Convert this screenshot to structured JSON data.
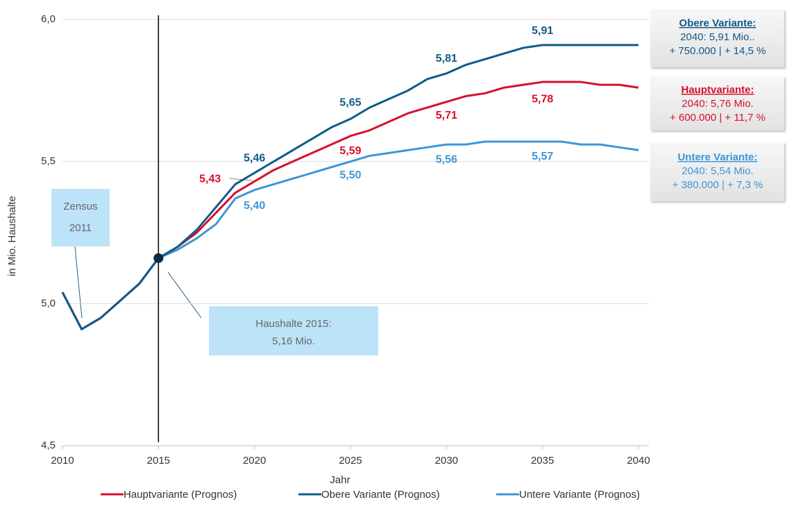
{
  "chart_data": {
    "type": "line",
    "x": [
      2010,
      2011,
      2012,
      2013,
      2014,
      2015,
      2016,
      2017,
      2018,
      2019,
      2020,
      2021,
      2022,
      2023,
      2024,
      2025,
      2026,
      2027,
      2028,
      2029,
      2030,
      2031,
      2032,
      2033,
      2034,
      2035,
      2036,
      2037,
      2038,
      2039,
      2040
    ],
    "series": [
      {
        "name": "Hauptvariante (Prognos)",
        "color": "#d7102b",
        "values": [
          5.04,
          4.91,
          4.95,
          5.01,
          5.07,
          5.16,
          5.2,
          5.25,
          5.32,
          5.39,
          5.43,
          5.47,
          5.5,
          5.53,
          5.56,
          5.59,
          5.61,
          5.64,
          5.67,
          5.69,
          5.71,
          5.73,
          5.74,
          5.76,
          5.77,
          5.78,
          5.78,
          5.78,
          5.77,
          5.77,
          5.76
        ],
        "value_labels": [
          null,
          null,
          null,
          null,
          null,
          null,
          null,
          null,
          null,
          null,
          "5,43",
          null,
          null,
          null,
          null,
          "5,59",
          null,
          null,
          null,
          null,
          "5,71",
          null,
          null,
          null,
          null,
          "5,78",
          null,
          null,
          null,
          null,
          null
        ]
      },
      {
        "name": "Obere Variante (Prognos)",
        "color": "#105a8a",
        "values": [
          5.04,
          4.91,
          4.95,
          5.01,
          5.07,
          5.16,
          5.2,
          5.26,
          5.34,
          5.42,
          5.46,
          5.5,
          5.54,
          5.58,
          5.62,
          5.65,
          5.69,
          5.72,
          5.75,
          5.79,
          5.81,
          5.84,
          5.86,
          5.88,
          5.9,
          5.91,
          5.91,
          5.91,
          5.91,
          5.91,
          5.91
        ],
        "value_labels": [
          null,
          null,
          null,
          null,
          null,
          null,
          null,
          null,
          null,
          null,
          "5,46",
          null,
          null,
          null,
          null,
          "5,65",
          null,
          null,
          null,
          null,
          "5,81",
          null,
          null,
          null,
          null,
          "5,91",
          null,
          null,
          null,
          null,
          null
        ]
      },
      {
        "name": "Untere Variante (Prognos)",
        "color": "#3d96d6",
        "values": [
          5.04,
          4.91,
          4.95,
          5.01,
          5.07,
          5.16,
          5.19,
          5.23,
          5.28,
          5.37,
          5.4,
          5.42,
          5.44,
          5.46,
          5.48,
          5.5,
          5.52,
          5.53,
          5.54,
          5.55,
          5.56,
          5.56,
          5.57,
          5.57,
          5.57,
          5.57,
          5.57,
          5.56,
          5.56,
          5.55,
          5.54
        ],
        "value_labels": [
          null,
          null,
          null,
          null,
          null,
          null,
          null,
          null,
          null,
          null,
          "5,40",
          null,
          null,
          null,
          null,
          "5,50",
          null,
          null,
          null,
          null,
          "5,56",
          null,
          null,
          null,
          null,
          "5,57",
          null,
          null,
          null,
          null,
          null
        ]
      }
    ],
    "xlim": [
      2010,
      2040
    ],
    "xticks": [
      2010,
      2015,
      2020,
      2025,
      2030,
      2035,
      2040
    ],
    "ylim": [
      4.5,
      6.0
    ],
    "yticks": [
      {
        "value": 4.5,
        "label": "4,5"
      },
      {
        "value": 5.0,
        "label": "5,0"
      },
      {
        "value": 5.5,
        "label": "5,5"
      },
      {
        "value": 6.0,
        "label": "6,0"
      }
    ],
    "grid": true,
    "x_label": "Jahr",
    "y_label": "in Mio. Haushalte",
    "legend": "bottom",
    "annotations": {
      "obere": {
        "title": "Obere Variante:",
        "lines": [
          "2040: 5,91 Mio..",
          "+ 750.000 | + 14,5 %"
        ]
      },
      "haupt": {
        "title": "Hauptvariante:",
        "lines": [
          "2040: 5,76 Mio.",
          "+ 600.000 | + 11,7 %"
        ]
      },
      "untere": {
        "title": "Untere Variante:",
        "lines": [
          "2040: 5,54 Mio.",
          "+ 380.000 | + 7,3 %"
        ]
      },
      "zensus": [
        "Zensus",
        "2011"
      ],
      "haushalte": [
        "Haushalte 2015:",
        "5,16 Mio."
      ]
    }
  }
}
